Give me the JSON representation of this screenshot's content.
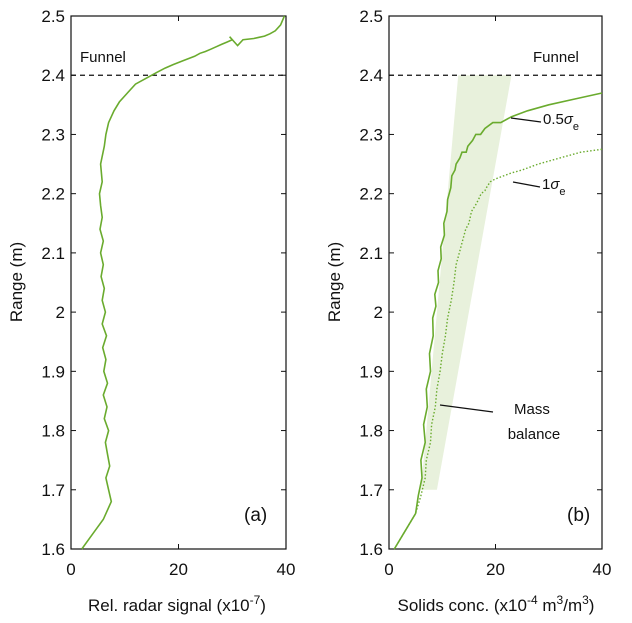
{
  "chart_data": [
    {
      "type": "line",
      "panel_label": "(a)",
      "xlabel": "Rel. radar signal (x10",
      "xlabel_exp": "-7",
      "xlabel_tail": ")",
      "ylabel": "Range (m)",
      "xlim": [
        0,
        40
      ],
      "ylim": [
        1.6,
        2.5
      ],
      "x_ticks": [
        "0",
        "20",
        "40"
      ],
      "y_ticks": [
        "1.6",
        "1.7",
        "1.8",
        "1.9",
        "2",
        "2.1",
        "2.2",
        "2.3",
        "2.4",
        "2.5"
      ],
      "series": [
        {
          "style": "solid",
          "color": "#6aab2e",
          "x": [
            2,
            4,
            6,
            7.5,
            7,
            6.5,
            7.2,
            6.8,
            6.4,
            7,
            6.2,
            6.7,
            6,
            6.8,
            6.1,
            6.5,
            5.9,
            6.6,
            5.8,
            6.4,
            5.8,
            6.2,
            5.6,
            6,
            5.5,
            6,
            5.4,
            5.8,
            5.5,
            5.3,
            5.8,
            5.5,
            6.2,
            6.5,
            7,
            8,
            9,
            10.5,
            12,
            14,
            16,
            17.5,
            19,
            21,
            23,
            24,
            25,
            26,
            27,
            28,
            29,
            30,
            29.5,
            31,
            32,
            34,
            35,
            36,
            37,
            38,
            39,
            39.7
          ],
          "y": [
            1.6,
            1.625,
            1.65,
            1.68,
            1.7,
            1.72,
            1.74,
            1.76,
            1.78,
            1.8,
            1.82,
            1.84,
            1.86,
            1.88,
            1.9,
            1.92,
            1.94,
            1.96,
            1.98,
            2.0,
            2.02,
            2.04,
            2.06,
            2.08,
            2.1,
            2.12,
            2.14,
            2.16,
            2.18,
            2.2,
            2.22,
            2.25,
            2.28,
            2.3,
            2.32,
            2.34,
            2.355,
            2.37,
            2.385,
            2.395,
            2.405,
            2.412,
            2.418,
            2.425,
            2.432,
            2.437,
            2.44,
            2.444,
            2.448,
            2.452,
            2.456,
            2.46,
            2.465,
            2.45,
            2.46,
            2.462,
            2.464,
            2.466,
            2.47,
            2.475,
            2.485,
            2.5
          ]
        }
      ],
      "hline": {
        "y": 2.4,
        "style": "dashed",
        "label": "Funnel"
      },
      "grid": false
    },
    {
      "type": "line",
      "panel_label": "(b)",
      "xlabel": "Solids conc. (x10",
      "xlabel_exp": "-4",
      "xlabel_mid": " m",
      "xlabel_exp2": "3",
      "xlabel_mid2": "/m",
      "xlabel_exp3": "3",
      "xlabel_tail": ")",
      "ylabel": "Range (m)",
      "xlim": [
        0,
        40
      ],
      "ylim": [
        1.6,
        2.5
      ],
      "x_ticks": [
        "0",
        "20",
        "40"
      ],
      "y_ticks": [
        "1.6",
        "1.7",
        "1.8",
        "1.9",
        "2",
        "2.1",
        "2.2",
        "2.3",
        "2.4",
        "2.5"
      ],
      "band": {
        "name_label": "Mass balance",
        "color": "#e8f1dc",
        "left_x": [
          6,
          13
        ],
        "right_x": [
          9,
          23
        ],
        "y": [
          1.7,
          2.4
        ]
      },
      "series": [
        {
          "label_prefix": "0.5",
          "label_sym": "σ",
          "label_sub": "e",
          "style": "solid",
          "color": "#6aab2e",
          "x": [
            1,
            3,
            5,
            5.5,
            6.2,
            6,
            6.8,
            6.5,
            7.2,
            7,
            7.8,
            7.6,
            8.3,
            8.2,
            8.8,
            8.6,
            9.3,
            9.2,
            9.8,
            9.7,
            10.4,
            10.3,
            10.9,
            11,
            11.6,
            11.8,
            12.4,
            12.6,
            13.3,
            13.7,
            14.5,
            14.8,
            15.7,
            16.3,
            17.2,
            18,
            19.5,
            21,
            23,
            26,
            30,
            35,
            40
          ],
          "y": [
            1.6,
            1.63,
            1.66,
            1.69,
            1.72,
            1.75,
            1.78,
            1.81,
            1.84,
            1.87,
            1.9,
            1.93,
            1.96,
            1.99,
            2.01,
            2.03,
            2.05,
            2.07,
            2.09,
            2.11,
            2.13,
            2.15,
            2.17,
            2.19,
            2.21,
            2.23,
            2.24,
            2.25,
            2.26,
            2.27,
            2.27,
            2.28,
            2.29,
            2.3,
            2.3,
            2.31,
            2.32,
            2.32,
            2.33,
            2.34,
            2.35,
            2.36,
            2.37
          ]
        },
        {
          "label_prefix": "1",
          "label_sym": "σ",
          "label_sub": "e",
          "style": "dotted",
          "color": "#6aab2e",
          "x": [
            1,
            3,
            5,
            6,
            6.8,
            7,
            7.8,
            8,
            8.7,
            9,
            9.6,
            10,
            10.6,
            11,
            11.7,
            12.2,
            12.6,
            13.2,
            13.8,
            14.4,
            15,
            15.5,
            16.2,
            16.8,
            17.3,
            18,
            18.3,
            19,
            20,
            21.5,
            23,
            25,
            28,
            32,
            36,
            40
          ],
          "y": [
            1.6,
            1.63,
            1.66,
            1.69,
            1.72,
            1.75,
            1.78,
            1.81,
            1.84,
            1.87,
            1.9,
            1.93,
            1.96,
            1.99,
            2.02,
            2.05,
            2.08,
            2.1,
            2.12,
            2.14,
            2.15,
            2.17,
            2.18,
            2.19,
            2.2,
            2.205,
            2.21,
            2.22,
            2.225,
            2.23,
            2.235,
            2.24,
            2.25,
            2.26,
            2.27,
            2.275
          ]
        }
      ],
      "hline": {
        "y": 2.4,
        "style": "dashed",
        "label": "Funnel"
      },
      "grid": false
    }
  ]
}
